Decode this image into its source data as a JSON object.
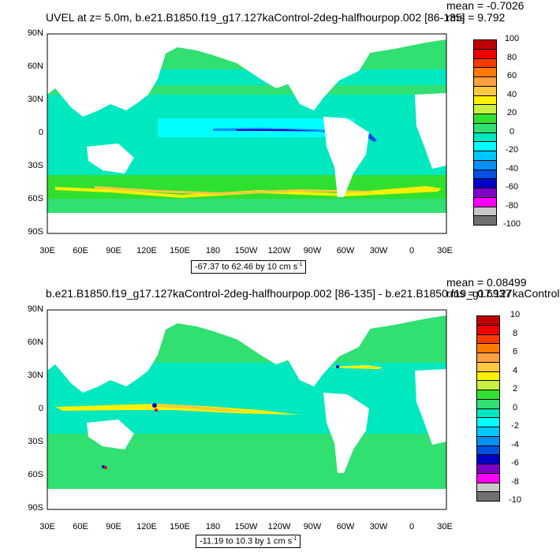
{
  "panels": [
    {
      "title": "UVEL at z=   5.0m, b.e21.B1850.f19_g17.127kaControl-2deg-halfhourpop.002 [86-135]",
      "mean_label": "mean = -0.7026",
      "rms_label": "rms = 9.792",
      "range_text": "-67.37 to 62.46 by 10 cm s",
      "range_sup": "-1",
      "colorbar_labels": [
        "100",
        "80",
        "60",
        "40",
        "20",
        "0",
        "-20",
        "-40",
        "-60",
        "-80",
        "-100"
      ]
    },
    {
      "title": "b.e21.B1850.f19_g17.127kaControl-2deg-halfhourpop.002 [86-135] - b.e21.B1850.f19_g17.127kaControl",
      "mean_label": "mean = 0.08499",
      "rms_label": "rms = 0.6937",
      "range_text": "-11.19 to 10.3 by 1 cm s",
      "range_sup": "-1",
      "colorbar_labels": [
        "10",
        "8",
        "6",
        "4",
        "2",
        "0",
        "-2",
        "-4",
        "-6",
        "-8",
        "-10"
      ]
    }
  ],
  "lat_labels": [
    "90N",
    "60N",
    "30N",
    "0",
    "30S",
    "60S",
    "90S"
  ],
  "lon_labels": [
    "30E",
    "60E",
    "90E",
    "120E",
    "150E",
    "180",
    "150W",
    "120W",
    "90W",
    "60W",
    "30W",
    "0",
    "30E"
  ],
  "colorbar_colors": [
    "#c00000",
    "#ee0000",
    "#ff3a00",
    "#ff7a00",
    "#ffa040",
    "#ffc840",
    "#fff000",
    "#c8f040",
    "#30e030",
    "#30e070",
    "#00e8c0",
    "#00ffff",
    "#00c8ff",
    "#0090ff",
    "#0050e0",
    "#0000c8",
    "#8000c8",
    "#ff00ff",
    "#c8c8c8",
    "#707070"
  ],
  "colors": {
    "land": "#ffffff",
    "ocean_base": "#30e070",
    "ocean_cyan": "#00e8c0",
    "ocean_lightcyan": "#00ffff",
    "jet_yellow": "#fff000",
    "jet_orange": "#ffc840",
    "blue": "#0090ff",
    "deep_blue": "#0000c8",
    "red": "#ee0000"
  }
}
